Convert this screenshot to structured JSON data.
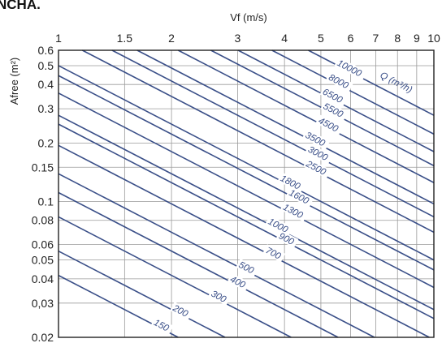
{
  "header_fragment": "NCHA.",
  "chart_data": {
    "type": "line",
    "title": "",
    "xlabel": "Vf  (m/s)",
    "ylabel": "Afree (m²)",
    "xscale": "log",
    "yscale": "log",
    "xlim": [
      1,
      10
    ],
    "ylim": [
      0.02,
      0.6
    ],
    "x_axis_position": "top",
    "grid": true,
    "x_ticks": [
      1,
      1.5,
      2,
      3,
      4,
      5,
      6,
      7,
      8,
      9,
      10
    ],
    "x_tick_labels": [
      "1",
      "1.5",
      "2",
      "3",
      "4",
      "5",
      "6",
      "7",
      "8",
      "9",
      "10"
    ],
    "y_ticks": [
      0.6,
      0.5,
      0.4,
      0.3,
      0.2,
      0.15,
      0.1,
      0.08,
      0.06,
      0.05,
      0.04,
      0.03,
      0.02
    ],
    "y_tick_labels": [
      "0.6",
      "0.5",
      "0.4",
      "0.3",
      "0.2",
      "0.15",
      "0.1",
      "0.08",
      "0.06",
      "0.05",
      "0.04",
      "0,03",
      "0.02"
    ],
    "series_label": "Q (m³/h)",
    "line_color": "#3a4f88",
    "label_color": "#3a4f88",
    "series": [
      {
        "name": "10000",
        "q": 10000
      },
      {
        "name": "8000",
        "q": 8000
      },
      {
        "name": "6500",
        "q": 6500
      },
      {
        "name": "5500",
        "q": 5500
      },
      {
        "name": "4500",
        "q": 4500
      },
      {
        "name": "3500",
        "q": 3500
      },
      {
        "name": "3000",
        "q": 3000
      },
      {
        "name": "2500",
        "q": 2500
      },
      {
        "name": "1800",
        "q": 1800
      },
      {
        "name": "1600",
        "q": 1600
      },
      {
        "name": "1300",
        "q": 1300
      },
      {
        "name": "1000",
        "q": 1000
      },
      {
        "name": "900",
        "q": 900
      },
      {
        "name": "700",
        "q": 700
      },
      {
        "name": "500",
        "q": 500
      },
      {
        "name": "400",
        "q": 400
      },
      {
        "name": "300",
        "q": 300
      },
      {
        "name": "200",
        "q": 200
      },
      {
        "name": "150",
        "q": 150
      }
    ]
  }
}
